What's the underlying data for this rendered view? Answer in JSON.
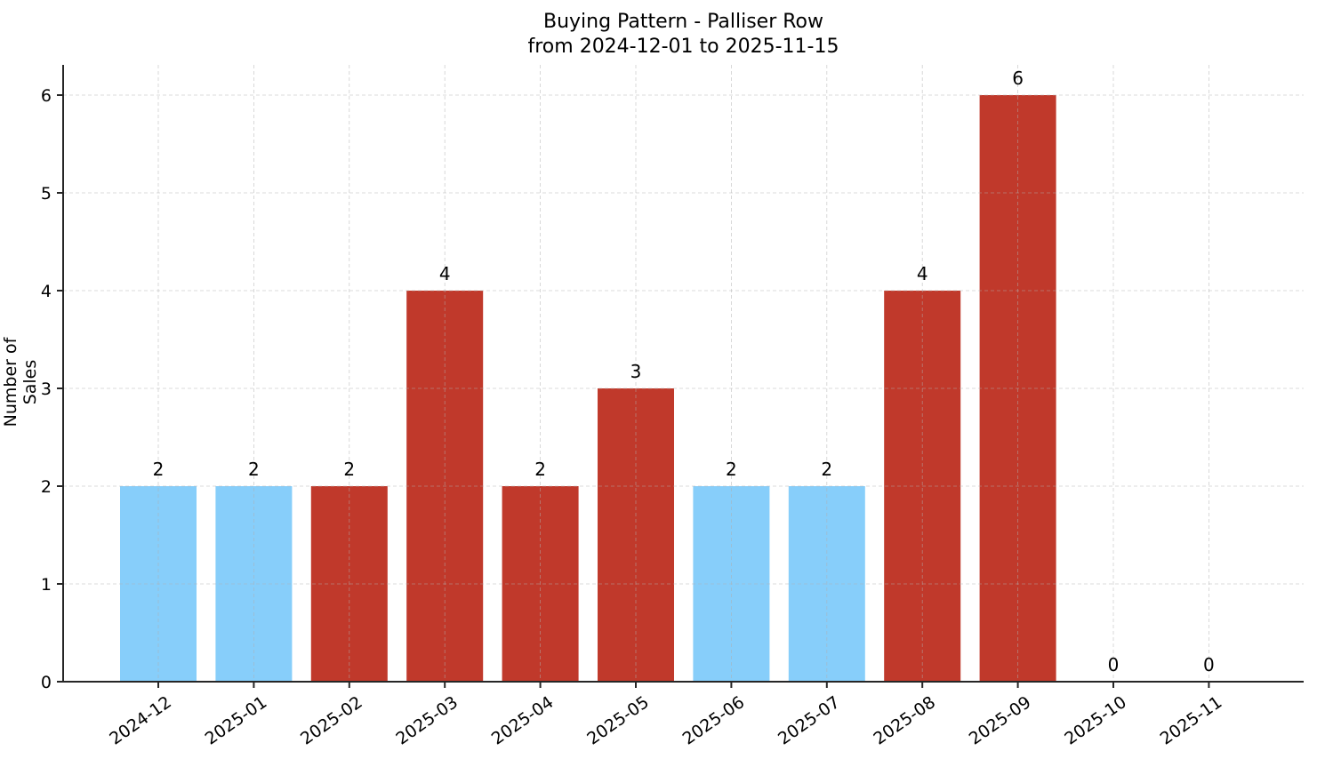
{
  "chart_data": {
    "type": "bar",
    "title": "Buying Pattern - Palliser Row",
    "subtitle": "from 2024-12-01 to 2025-11-15",
    "xlabel": "",
    "ylabel": "Number of Sales",
    "categories": [
      "2024-12",
      "2025-01",
      "2025-02",
      "2025-03",
      "2025-04",
      "2025-05",
      "2025-06",
      "2025-07",
      "2025-08",
      "2025-09",
      "2025-10",
      "2025-11"
    ],
    "values": [
      2,
      2,
      2,
      4,
      2,
      3,
      2,
      2,
      4,
      6,
      0,
      0
    ],
    "bar_colors": [
      "#87cefa",
      "#87cefa",
      "#c0392b",
      "#c0392b",
      "#c0392b",
      "#c0392b",
      "#87cefa",
      "#87cefa",
      "#c0392b",
      "#c0392b",
      "#c0392b",
      "#c0392b"
    ],
    "data_labels": [
      "2",
      "2",
      "2",
      "4",
      "2",
      "3",
      "2",
      "2",
      "4",
      "6",
      "0",
      "0"
    ],
    "yticks": [
      0,
      1,
      2,
      3,
      4,
      5,
      6
    ],
    "ylim": [
      0,
      6.3
    ],
    "grid": true,
    "legend": null
  }
}
